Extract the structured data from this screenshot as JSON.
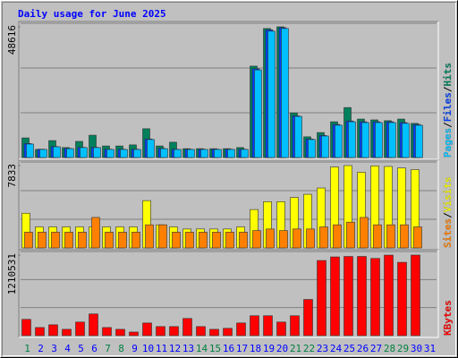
{
  "chart_data": [
    {
      "type": "bar",
      "title": "Daily usage for June 2025",
      "legend_separator": "/",
      "ylim": [
        0,
        48616
      ],
      "yticks": [
        48616
      ],
      "series": [
        {
          "name": "Hits",
          "color": "#00805c",
          "values": [
            7300,
            3000,
            6300,
            3700,
            6000,
            8300,
            4300,
            4300,
            4700,
            10700,
            4300,
            5700,
            3300,
            3300,
            3300,
            3300,
            3700,
            34000,
            48000,
            48616,
            16600,
            7700,
            9300,
            13300,
            18600,
            14300,
            14000,
            13700,
            14300,
            12700,
            null
          ]
        },
        {
          "name": "Files",
          "color": "#0040ff",
          "values": [
            5200,
            3100,
            4100,
            3400,
            3800,
            3800,
            3100,
            3100,
            3100,
            6900,
            3400,
            3100,
            3100,
            3100,
            3100,
            3100,
            3100,
            33000,
            47500,
            48300,
            15500,
            6900,
            8200,
            12300,
            13600,
            13300,
            13300,
            13300,
            13000,
            12300,
            null
          ]
        },
        {
          "name": "Pages",
          "color": "#00c0ff",
          "values": [
            5000,
            3000,
            4000,
            3300,
            3700,
            3700,
            3000,
            3000,
            3000,
            6700,
            3300,
            3000,
            3000,
            3000,
            3000,
            3000,
            3000,
            32600,
            47000,
            48000,
            15300,
            6700,
            8000,
            12000,
            13300,
            13000,
            13000,
            13000,
            12700,
            12000,
            null
          ]
        }
      ]
    },
    {
      "type": "bar",
      "ylim": [
        0,
        7833
      ],
      "yticks": [
        7833
      ],
      "series": [
        {
          "name": "Visits",
          "color": "#ffff00",
          "values": [
            3300,
            2000,
            2000,
            2000,
            2000,
            2000,
            2000,
            2000,
            2000,
            4500,
            2200,
            2000,
            1800,
            1800,
            1800,
            1800,
            2000,
            3650,
            4400,
            4400,
            4800,
            5100,
            5700,
            7700,
            7833,
            7200,
            7800,
            7750,
            7600,
            7450,
            null
          ]
        },
        {
          "name": "Sites",
          "color": "#ff8000",
          "values": [
            1500,
            1500,
            1500,
            1500,
            1500,
            2900,
            1500,
            1500,
            1500,
            2200,
            2200,
            1500,
            1500,
            1500,
            1500,
            1500,
            1500,
            1650,
            1800,
            1650,
            1800,
            1800,
            2000,
            2200,
            2450,
            2900,
            2200,
            2200,
            2200,
            2000,
            null
          ]
        }
      ]
    },
    {
      "type": "bar",
      "ylim": [
        0,
        1210531
      ],
      "yticks": [
        1210531
      ],
      "categories": [
        "1",
        "2",
        "3",
        "4",
        "5",
        "6",
        "7",
        "8",
        "9",
        "10",
        "11",
        "12",
        "13",
        "14",
        "15",
        "16",
        "17",
        "18",
        "19",
        "20",
        "21",
        "22",
        "23",
        "24",
        "25",
        "26",
        "27",
        "28",
        "29",
        "30",
        "31"
      ],
      "category_colors": [
        "#008040",
        "#0000ff",
        "#0000ff",
        "#0000ff",
        "#0000ff",
        "#0000ff",
        "#008040",
        "#008040",
        "#0000ff",
        "#0000ff",
        "#0000ff",
        "#0000ff",
        "#0000ff",
        "#008040",
        "#008040",
        "#0000ff",
        "#0000ff",
        "#0000ff",
        "#0000ff",
        "#0000ff",
        "#008040",
        "#008040",
        "#0000ff",
        "#0000ff",
        "#0000ff",
        "#0000ff",
        "#0000ff",
        "#008040",
        "#008040",
        "#0000ff",
        "#0000ff"
      ],
      "series": [
        {
          "name": "KBytes",
          "color": "#ff0000",
          "values": [
            245000,
            122000,
            163000,
            95000,
            204000,
            326000,
            122000,
            95000,
            54000,
            190000,
            136000,
            136000,
            258000,
            136000,
            95000,
            110000,
            190000,
            299000,
            299000,
            204000,
            299000,
            544000,
            1129000,
            1183000,
            1190000,
            1190000,
            1160000,
            1210000,
            1102000,
            1210531,
            null
          ]
        }
      ]
    }
  ]
}
